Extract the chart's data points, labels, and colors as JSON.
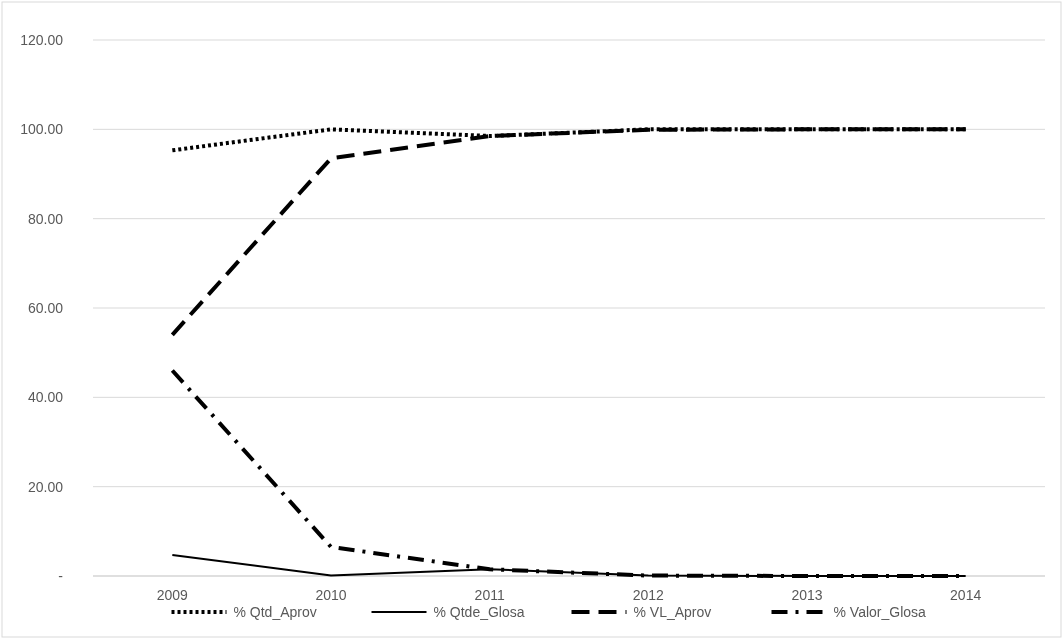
{
  "chart_data": {
    "type": "line",
    "categories": [
      "2009",
      "2010",
      "2011",
      "2012",
      "2013",
      "2014"
    ],
    "ylim": [
      0,
      120
    ],
    "yticks": [
      {
        "value": 0,
        "label": "-"
      },
      {
        "value": 20,
        "label": "20.00"
      },
      {
        "value": 40,
        "label": "40.00"
      },
      {
        "value": 60,
        "label": "60.00"
      },
      {
        "value": 80,
        "label": "80.00"
      },
      {
        "value": 100,
        "label": "100.00"
      },
      {
        "value": 120,
        "label": "120.00"
      }
    ],
    "grid": "y",
    "legend": "bottom",
    "series": [
      {
        "name": "% Qtd_Aprov",
        "color": "#000000",
        "line_style": "dotted",
        "values": [
          95.3,
          100,
          98.5,
          100,
          100,
          100
        ]
      },
      {
        "name": "% Qtde_Glosa",
        "color": "#000000",
        "line_style": "solid",
        "values": [
          4.7,
          0.1,
          1.5,
          0.1,
          0,
          0
        ]
      },
      {
        "name": "% VL_Aprov",
        "color": "#000000",
        "line_style": "dashed",
        "values": [
          54,
          93.5,
          98.5,
          99.9,
          100,
          100
        ]
      },
      {
        "name": "% Valor_Glosa",
        "color": "#000000",
        "line_style": "dashdot",
        "values": [
          46,
          6.5,
          1.5,
          0.1,
          0,
          0
        ]
      }
    ]
  }
}
